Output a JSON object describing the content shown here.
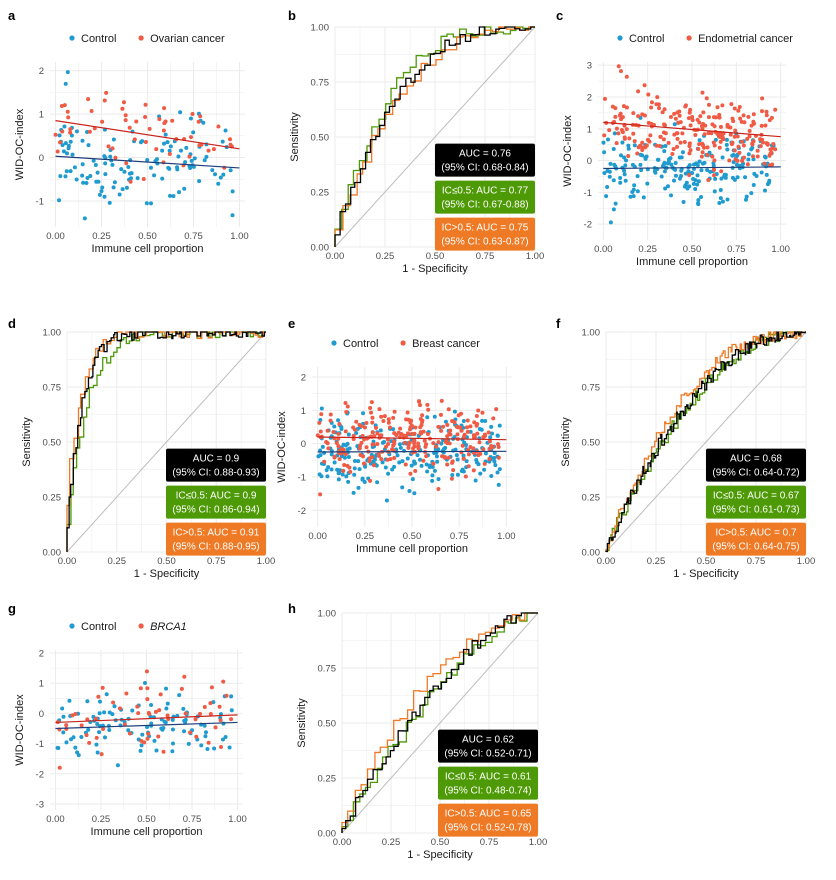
{
  "colors": {
    "control": "#1f9bcf",
    "case": "#ef5b45",
    "control_line": "#1f3d7a",
    "case_line": "#c8231c",
    "combined": "#000000",
    "low": "#4e9a06",
    "high": "#ef7a26",
    "diagonal": "#bdbdbd",
    "grid": "#ebebeb"
  },
  "chart_data": [
    {
      "panel": "a",
      "type": "scatter",
      "legend": {
        "control": "Control",
        "case": "Ovarian cancer",
        "italic_case": false
      },
      "xlabel": "Immune cell proportion",
      "ylabel": "WID-OC-index",
      "xlim": [
        -0.03,
        1.03
      ],
      "ylim": [
        -1.6,
        2.2
      ],
      "xticks": [
        0,
        0.25,
        0.5,
        0.75,
        1
      ],
      "xtick_labels": [
        "0.00",
        "0.25",
        "0.50",
        "0.75",
        "1.00"
      ],
      "yticks": [
        -1,
        0,
        1,
        2
      ],
      "ytick_labels": [
        "-1",
        "0",
        "1",
        "2"
      ],
      "n_control": 130,
      "n_case": 60,
      "control_fit": [
        0.03,
        -0.27
      ],
      "case_fit": [
        0.85,
        -0.65
      ],
      "control_mean": -0.15,
      "case_mean": 0.5,
      "control_sd": 0.55,
      "case_sd": 0.45,
      "seed": 11
    },
    {
      "panel": "b",
      "type": "roc",
      "xlabel": "1 - Specificity",
      "ylabel": "Sensitivity",
      "ticks": [
        0,
        0.25,
        0.5,
        0.75,
        1
      ],
      "tick_labels": [
        "0.00",
        "0.25",
        "0.50",
        "0.75",
        "1.00"
      ],
      "series": [
        {
          "name": "all",
          "k": 2.9,
          "steps": 40,
          "seed": 3
        },
        {
          "name": "low",
          "k": 3.2,
          "steps": 32,
          "seed": 5
        },
        {
          "name": "high",
          "k": 2.7,
          "steps": 28,
          "seed": 7
        }
      ],
      "auc_boxes": [
        {
          "line1": "AUC = 0.76",
          "line2": "(95% CI: 0.68-0.84)"
        },
        {
          "line1": "IC≤0.5: AUC = 0.77",
          "line2": "(95% CI: 0.67-0.88)"
        },
        {
          "line1": "IC>0.5: AUC = 0.75",
          "line2": "(95% CI: 0.63-0.87)"
        }
      ]
    },
    {
      "panel": "c",
      "type": "scatter",
      "legend": {
        "control": "Control",
        "case": "Endometrial cancer",
        "italic_case": false
      },
      "xlabel": "Immune cell proportion",
      "ylabel": "WID-OC-index",
      "xlim": [
        -0.03,
        1.03
      ],
      "ylim": [
        -2.5,
        3.1
      ],
      "xticks": [
        0,
        0.25,
        0.5,
        0.75,
        1
      ],
      "xtick_labels": [
        "0.00",
        "0.25",
        "0.50",
        "0.75",
        "1.00"
      ],
      "yticks": [
        -2,
        -1,
        0,
        1,
        2,
        3
      ],
      "ytick_labels": [
        "-2",
        "-1",
        "0",
        "1",
        "2",
        "3"
      ],
      "n_control": 210,
      "n_case": 240,
      "control_fit": [
        -0.25,
        0.05
      ],
      "case_fit": [
        1.2,
        -0.45
      ],
      "control_mean": -0.2,
      "case_mean": 0.95,
      "control_sd": 0.55,
      "case_sd": 0.55,
      "seed": 21
    },
    {
      "panel": "d",
      "type": "roc",
      "xlabel": "1 - Specificity",
      "ylabel": "Sensitivity",
      "ticks": [
        0,
        0.25,
        0.5,
        0.75,
        1
      ],
      "tick_labels": [
        "0.00",
        "0.25",
        "0.50",
        "0.75",
        "1.00"
      ],
      "series": [
        {
          "name": "all",
          "k": 12,
          "steps": 90,
          "seed": 13
        },
        {
          "name": "low",
          "k": 9,
          "steps": 60,
          "seed": 17
        },
        {
          "name": "high",
          "k": 14,
          "steps": 55,
          "seed": 19
        }
      ],
      "auc_boxes": [
        {
          "line1": "AUC = 0.9",
          "line2": "(95% CI: 0.88-0.93)"
        },
        {
          "line1": "IC≤0.5: AUC = 0.9",
          "line2": "(95% CI: 0.86-0.94)"
        },
        {
          "line1": "IC>0.5: AUC = 0.91",
          "line2": "(95% CI: 0.88-0.95)"
        }
      ]
    },
    {
      "panel": "e",
      "type": "scatter",
      "legend": {
        "control": "Control",
        "case": "Breast cancer",
        "italic_case": false
      },
      "xlabel": "Immune cell proportion",
      "ylabel": "WID-OC-index",
      "xlim": [
        -0.03,
        1.03
      ],
      "ylim": [
        -2.5,
        2.3
      ],
      "xticks": [
        0,
        0.25,
        0.5,
        0.75,
        1
      ],
      "xtick_labels": [
        "0.00",
        "0.25",
        "0.50",
        "0.75",
        "1.00"
      ],
      "yticks": [
        -2,
        -1,
        0,
        1,
        2
      ],
      "ytick_labels": [
        "-2",
        "-1",
        "0",
        "1",
        "2"
      ],
      "n_control": 260,
      "n_case": 260,
      "control_fit": [
        -0.25,
        0.02
      ],
      "case_fit": [
        0.2,
        -0.08
      ],
      "control_mean": -0.25,
      "case_mean": 0.2,
      "control_sd": 0.55,
      "case_sd": 0.5,
      "seed": 31
    },
    {
      "panel": "f",
      "type": "roc",
      "xlabel": "1 - Specificity",
      "ylabel": "Sensitivity",
      "ticks": [
        0,
        0.25,
        0.5,
        0.75,
        1
      ],
      "tick_labels": [
        "0.00",
        "0.25",
        "0.50",
        "0.75",
        "1.00"
      ],
      "series": [
        {
          "name": "all",
          "k": 2.1,
          "steps": 120,
          "seed": 23
        },
        {
          "name": "low",
          "k": 2.0,
          "steps": 90,
          "seed": 29
        },
        {
          "name": "high",
          "k": 2.4,
          "steps": 90,
          "seed": 37
        }
      ],
      "auc_boxes": [
        {
          "line1": "AUC = 0.68",
          "line2": "(95% CI: 0.64-0.72)"
        },
        {
          "line1": "IC≤0.5: AUC = 0.67",
          "line2": "(95% CI: 0.61-0.73)"
        },
        {
          "line1": "IC>0.5: AUC = 0.7",
          "line2": "(95% CI: 0.64-0.75)"
        }
      ]
    },
    {
      "panel": "g",
      "type": "scatter",
      "legend": {
        "control": "Control",
        "case": "BRCA1",
        "italic_case": true
      },
      "xlabel": "Immune cell proportion",
      "ylabel": "WID-OC-index",
      "xlim": [
        -0.03,
        1.03
      ],
      "ylim": [
        -3.2,
        2.1
      ],
      "xticks": [
        0,
        0.25,
        0.5,
        0.75,
        1
      ],
      "xtick_labels": [
        "0.00",
        "0.25",
        "0.50",
        "0.75",
        "1.00"
      ],
      "yticks": [
        -3,
        -2,
        -1,
        0,
        1,
        2
      ],
      "ytick_labels": [
        "-3",
        "-2",
        "-1",
        "0",
        "1",
        "2"
      ],
      "n_control": 110,
      "n_case": 60,
      "control_fit": [
        -0.5,
        0.2
      ],
      "case_fit": [
        -0.3,
        0.25
      ],
      "control_mean": -0.35,
      "case_mean": -0.15,
      "control_sd": 0.55,
      "case_sd": 0.6,
      "seed": 41
    },
    {
      "panel": "h",
      "type": "roc",
      "xlabel": "1 - Specificity",
      "ylabel": "Sensitivity",
      "ticks": [
        0,
        0.25,
        0.5,
        0.75,
        1
      ],
      "tick_labels": [
        "0.00",
        "0.25",
        "0.50",
        "0.75",
        "1.00"
      ],
      "series": [
        {
          "name": "all",
          "k": 1.6,
          "steps": 45,
          "seed": 43
        },
        {
          "name": "low",
          "k": 1.5,
          "steps": 34,
          "seed": 47
        },
        {
          "name": "high",
          "k": 1.9,
          "steps": 30,
          "seed": 53
        }
      ],
      "auc_boxes": [
        {
          "line1": "AUC = 0.62",
          "line2": "(95% CI: 0.52-0.71)"
        },
        {
          "line1": "IC≤0.5: AUC = 0.61",
          "line2": "(95% CI: 0.48-0.74)"
        },
        {
          "line1": "IC>0.5: AUC = 0.65",
          "line2": "(95% CI: 0.52-0.78)"
        }
      ]
    }
  ]
}
